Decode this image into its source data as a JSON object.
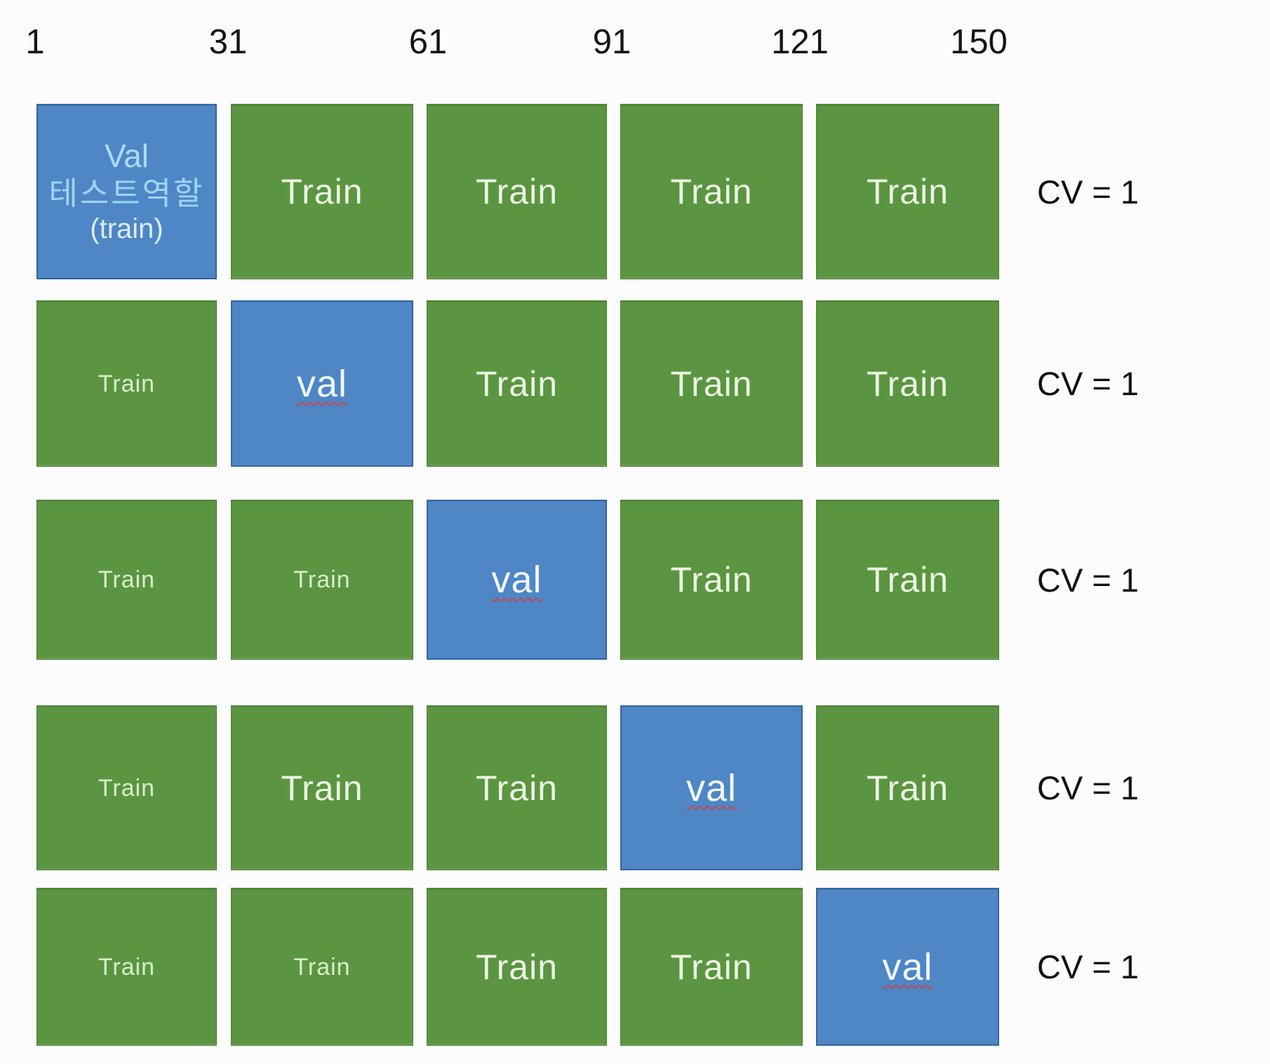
{
  "diagram": {
    "description_label": "k-fold cross validation grid",
    "axis_labels": [
      "1",
      "31",
      "61",
      "91",
      "121",
      "150"
    ],
    "rows": [
      {
        "cv": "CV = 1",
        "cells": [
          {
            "kind": "val-first",
            "lines": [
              "Val",
              "테스트역할",
              "(train)"
            ]
          },
          {
            "kind": "train",
            "size": "lg",
            "label": "Train"
          },
          {
            "kind": "train",
            "size": "lg",
            "label": "Train"
          },
          {
            "kind": "train",
            "size": "lg",
            "label": "Train"
          },
          {
            "kind": "train",
            "size": "lg",
            "label": "Train"
          }
        ]
      },
      {
        "cv": "CV = 1",
        "cells": [
          {
            "kind": "train",
            "size": "sm",
            "label": "Train"
          },
          {
            "kind": "val",
            "label": "val"
          },
          {
            "kind": "train",
            "size": "lg",
            "label": "Train"
          },
          {
            "kind": "train",
            "size": "lg",
            "label": "Train"
          },
          {
            "kind": "train",
            "size": "lg",
            "label": "Train"
          }
        ]
      },
      {
        "cv": "CV = 1",
        "cells": [
          {
            "kind": "train",
            "size": "sm",
            "label": "Train"
          },
          {
            "kind": "train",
            "size": "sm",
            "label": "Train"
          },
          {
            "kind": "val",
            "label": "val"
          },
          {
            "kind": "train",
            "size": "lg",
            "label": "Train"
          },
          {
            "kind": "train",
            "size": "lg",
            "label": "Train"
          }
        ]
      },
      {
        "cv": "CV = 1",
        "cells": [
          {
            "kind": "train",
            "size": "sm",
            "label": "Train"
          },
          {
            "kind": "train",
            "size": "lg",
            "label": "Train"
          },
          {
            "kind": "train",
            "size": "lg",
            "label": "Train"
          },
          {
            "kind": "val",
            "label": "val"
          },
          {
            "kind": "train",
            "size": "lg",
            "label": "Train"
          }
        ]
      },
      {
        "cv": "CV = 1",
        "cells": [
          {
            "kind": "train",
            "size": "sm",
            "label": "Train"
          },
          {
            "kind": "train",
            "size": "sm",
            "label": "Train"
          },
          {
            "kind": "train",
            "size": "lg",
            "label": "Train"
          },
          {
            "kind": "train",
            "size": "lg",
            "label": "Train"
          },
          {
            "kind": "val",
            "label": "val"
          }
        ]
      }
    ]
  },
  "colors": {
    "background": "#fcfcfc",
    "train_fill": "#5b9541",
    "train_border": "#4a7c33",
    "val_fill": "#4e86c6",
    "val_border": "#34639e",
    "train_text": "#ecf6e4",
    "train_text_small": "#d8efcd",
    "val_text": "#f2f7fb",
    "val_first_line1": "#a9dcf6",
    "val_first_line2": "#9fd5f3",
    "val_first_line3": "#dcedf9",
    "axis_text": "#141414",
    "cv_text": "#111111",
    "wavy_underline": "#c04a56"
  }
}
